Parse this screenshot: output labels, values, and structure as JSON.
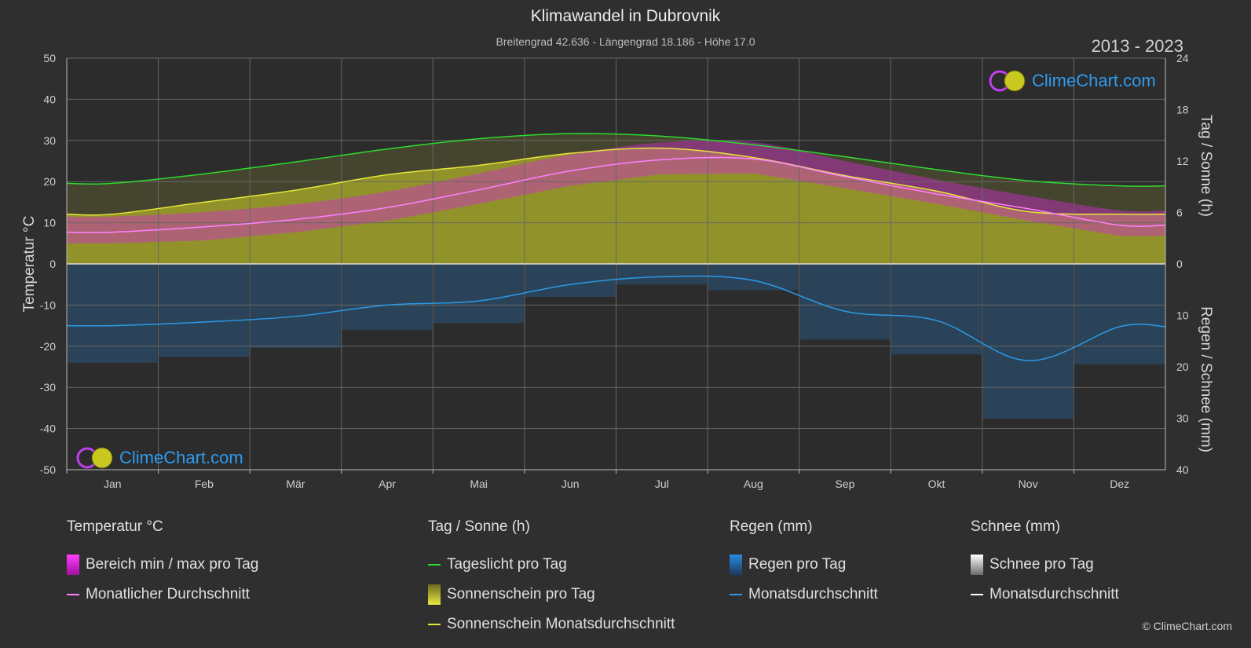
{
  "header": {
    "title": "Klimawandel in Dubrovnik",
    "subtitle": "Breitengrad 42.636 - Längengrad 18.186 - Höhe 17.0",
    "years": "2013 - 2023"
  },
  "branding": {
    "logo_text": "ClimeChart.com",
    "copyright": "© ClimeChart.com"
  },
  "colors": {
    "background": "#2f2f2f",
    "grid": "#666666",
    "daylight": "#2ddc2d",
    "sunshine_avg": "#e5e53a",
    "sunshine_fill": "#9a9a2a",
    "temp_range": "#d02bd0",
    "temp_avg": "#ff80ff",
    "rain": "#2a6fb0",
    "rain_avg": "#2a9ae8",
    "snow_avg": "#ffffff"
  },
  "chart_data": {
    "type": "line",
    "categories": [
      "Jan",
      "Feb",
      "Mär",
      "Apr",
      "Mai",
      "Jun",
      "Jul",
      "Aug",
      "Sep",
      "Okt",
      "Nov",
      "Dez"
    ],
    "axes": {
      "left": {
        "label": "Temperatur °C",
        "range": [
          -50,
          50
        ],
        "ticks": [
          50,
          40,
          30,
          20,
          10,
          0,
          -10,
          -20,
          -30,
          -40,
          -50
        ]
      },
      "right_top": {
        "label": "Tag / Sonne (h)",
        "range": [
          0,
          24
        ],
        "ticks": [
          24,
          18,
          12,
          6,
          0
        ]
      },
      "right_bottom": {
        "label": "Regen / Schnee (mm)",
        "range": [
          0,
          40
        ],
        "ticks": [
          0,
          10,
          20,
          30,
          40
        ]
      }
    },
    "grid": true,
    "series": [
      {
        "name": "Tageslicht pro Tag",
        "unit": "h",
        "values": [
          9.4,
          10.5,
          11.9,
          13.4,
          14.6,
          15.2,
          14.9,
          13.9,
          12.5,
          11.0,
          9.7,
          9.1
        ]
      },
      {
        "name": "Sonnenschein Monatsdurchschnitt",
        "unit": "h",
        "values": [
          5.8,
          7.2,
          8.6,
          10.4,
          11.5,
          12.9,
          13.5,
          12.4,
          10.3,
          8.5,
          6.1,
          5.8
        ]
      },
      {
        "name": "Monatlicher Durchschnitt",
        "unit": "°C",
        "values": [
          7.7,
          9.0,
          10.8,
          13.7,
          18.0,
          22.6,
          25.3,
          25.5,
          21.2,
          17.0,
          13.4,
          9.4
        ]
      },
      {
        "name": "Bereich min / max pro Tag",
        "unit": "°C",
        "min": [
          5.0,
          5.7,
          7.7,
          10.5,
          14.6,
          19.0,
          21.8,
          22.0,
          18.4,
          14.6,
          10.5,
          6.8
        ],
        "max": [
          11.5,
          12.6,
          14.5,
          17.6,
          22.0,
          26.6,
          29.5,
          29.6,
          25.0,
          20.5,
          16.5,
          13.0
        ]
      },
      {
        "name": "Monatsdurchschnitt",
        "unit": "mm",
        "values": [
          12.0,
          11.3,
          10.2,
          8.0,
          7.2,
          4.0,
          2.5,
          3.2,
          9.2,
          11.0,
          18.8,
          12.2
        ]
      }
    ]
  },
  "legend": {
    "groups": [
      {
        "heading": "Temperatur °C",
        "items": [
          {
            "label": "Bereich min / max pro Tag",
            "kind": "box",
            "color": "#d02bd0"
          },
          {
            "label": "Monatlicher Durchschnitt",
            "kind": "line",
            "color": "#ff80ff"
          }
        ]
      },
      {
        "heading": "Tag / Sonne (h)",
        "items": [
          {
            "label": "Tageslicht pro Tag",
            "kind": "line",
            "color": "#2ddc2d"
          },
          {
            "label": "Sonnenschein pro Tag",
            "kind": "box",
            "color": "#c8c830"
          },
          {
            "label": "Sonnenschein Monatsdurchschnitt",
            "kind": "line",
            "color": "#e5e53a"
          }
        ]
      },
      {
        "heading": "Regen (mm)",
        "items": [
          {
            "label": "Regen pro Tag",
            "kind": "box",
            "color": "#2a8ae0"
          },
          {
            "label": "Monatsdurchschnitt",
            "kind": "line",
            "color": "#2a9ae8"
          }
        ]
      },
      {
        "heading": "Schnee (mm)",
        "items": [
          {
            "label": "Schnee pro Tag",
            "kind": "box",
            "color": "#d8d8d8"
          },
          {
            "label": "Monatsdurchschnitt",
            "kind": "line",
            "color": "#ffffff"
          }
        ]
      }
    ]
  }
}
